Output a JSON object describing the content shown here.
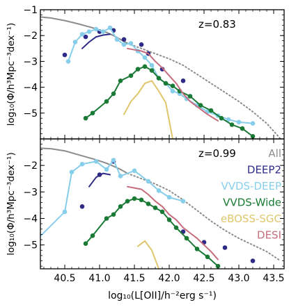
{
  "chart_data": [
    {
      "type": "line",
      "panel": "top",
      "annotation": "z=0.83",
      "xlabel": "log₁₀(L[OII]/h⁻²erg s⁻¹)",
      "ylabel": "log₁₀(Φ/h³Mpc⁻³dex⁻¹)",
      "xlim": [
        40.15,
        43.65
      ],
      "ylim": [
        -6.0,
        -1.0
      ],
      "yticks": [
        -1,
        -2,
        -3,
        -4,
        -5
      ],
      "ytick_labels": [
        "−1",
        "−2",
        "−3",
        "−4",
        "−5"
      ],
      "series": [
        {
          "name": "All",
          "style": "solid",
          "color": "#8c8c8c",
          "x": [
            40.15,
            40.3,
            40.5,
            40.7,
            40.9,
            41.0,
            41.1,
            41.2,
            41.3,
            41.4
          ],
          "y": [
            -1.28,
            -1.32,
            -1.42,
            -1.55,
            -1.7,
            -1.79,
            -1.88,
            -2.0,
            -2.15,
            -2.3
          ]
        },
        {
          "name": "",
          "style": "dotted",
          "color": "#8c8c8c",
          "x": [
            41.4,
            41.6,
            41.8,
            42.0,
            42.2,
            42.4,
            42.6,
            42.8,
            43.0,
            43.2,
            43.4,
            43.6
          ],
          "y": [
            -2.3,
            -2.5,
            -2.7,
            -2.9,
            -3.15,
            -3.5,
            -3.85,
            -4.2,
            -4.55,
            -4.95,
            -5.4,
            -6.0
          ]
        },
        {
          "name": "DEEP2",
          "style": "markers",
          "color": "#2e2a85",
          "x": [
            40.1,
            40.5,
            40.8,
            41.0,
            41.2,
            41.35,
            41.6,
            41.7,
            41.9,
            42.2
          ],
          "y": [
            -3.55,
            -2.75,
            -2.05,
            -1.85,
            -1.8,
            -2.15,
            -2.35,
            -2.7,
            -3.3,
            -3.75
          ]
        },
        {
          "name": "",
          "style": "solid",
          "color": "#2e2a85",
          "x": [
            40.75,
            40.85,
            40.95,
            41.05,
            41.15
          ],
          "y": [
            -2.5,
            -2.25,
            -2.05,
            -1.98,
            -1.95
          ]
        },
        {
          "name": "VVDS-DEEP",
          "style": "line+markers",
          "color": "#87ceeb",
          "x": [
            40.55,
            40.65,
            40.75,
            40.85,
            40.95,
            41.05,
            41.15,
            41.25,
            41.35,
            41.45,
            41.55,
            41.65,
            41.75,
            41.85,
            41.95,
            42.05,
            42.15,
            42.25,
            42.4,
            42.55,
            42.7,
            42.85,
            43.0,
            43.2
          ],
          "y": [
            -3.0,
            -2.25,
            -1.95,
            -1.85,
            -1.75,
            -1.85,
            -1.7,
            -2.15,
            -2.35,
            -2.3,
            -2.6,
            -2.85,
            -3.15,
            -3.65,
            -3.85,
            -4.15,
            -4.25,
            -4.45,
            -4.7,
            -4.95,
            -5.1,
            -5.25,
            -5.35,
            -5.4
          ]
        },
        {
          "name": "VVDS-Wide",
          "style": "line+markers",
          "color": "#1a7a35",
          "x": [
            40.8,
            40.9,
            41.1,
            41.2,
            41.3,
            41.45,
            41.55,
            41.65,
            41.75,
            41.85,
            41.95,
            42.05,
            42.15,
            42.3,
            42.45,
            42.6,
            42.75,
            42.9,
            43.05,
            43.2
          ],
          "y": [
            -5.2,
            -5.0,
            -4.55,
            -4.25,
            -3.75,
            -3.55,
            -3.3,
            -3.2,
            -3.35,
            -3.65,
            -3.85,
            -3.95,
            -4.15,
            -4.35,
            -4.7,
            -4.9,
            -5.2,
            -5.45,
            -5.6,
            -5.9
          ]
        },
        {
          "name": "eBOSS-SGC",
          "style": "solid",
          "color": "#e0c66b",
          "x": [
            41.35,
            41.45,
            41.55,
            41.65,
            41.75,
            41.85,
            41.95,
            42.05
          ],
          "y": [
            -5.05,
            -4.55,
            -4.25,
            -3.85,
            -3.75,
            -4.15,
            -4.6,
            -6.0
          ]
        },
        {
          "name": "DESI",
          "style": "solid",
          "color": "#c76c7d",
          "x": [
            41.4,
            41.5,
            41.6,
            41.7,
            41.8,
            41.9,
            42.0,
            42.1,
            42.2,
            42.3,
            42.4,
            42.55,
            42.7
          ],
          "y": [
            -2.5,
            -2.55,
            -2.6,
            -2.7,
            -3.0,
            -3.25,
            -3.55,
            -3.85,
            -4.25,
            -4.55,
            -4.75,
            -5.05,
            -5.3
          ]
        }
      ]
    },
    {
      "type": "line",
      "panel": "bottom",
      "annotation": "z=0.99",
      "xlabel": "log₁₀(L[OII]/h⁻²erg s⁻¹)",
      "ylabel": "log₁₀(Φ/h³Mpc⁻³dex⁻¹)",
      "xlim": [
        40.15,
        43.65
      ],
      "ylim": [
        -5.9,
        -1.0
      ],
      "yticks": [
        -2,
        -3,
        -4,
        -5
      ],
      "ytick_labels": [
        "−2",
        "−3",
        "−4",
        "−5"
      ],
      "xticks": [
        40.5,
        41.0,
        41.5,
        42.0,
        42.5,
        43.0,
        43.5
      ],
      "xtick_labels": [
        "40.5",
        "41.0",
        "41.5",
        "42.0",
        "42.5",
        "43.0",
        "43.5"
      ],
      "legend": [
        "All",
        "DEEP2",
        "VVDS-DEEP",
        "VVDS-Wide",
        "eBOSS-SGC",
        "DESI"
      ],
      "series": [
        {
          "name": "All",
          "style": "solid",
          "color": "#8c8c8c",
          "x": [
            40.15,
            40.3,
            40.5,
            40.7,
            40.9,
            41.0,
            41.1,
            41.2,
            41.3,
            41.4
          ],
          "y": [
            -1.35,
            -1.37,
            -1.45,
            -1.6,
            -1.75,
            -1.83,
            -1.92,
            -2.03,
            -2.15,
            -2.3
          ]
        },
        {
          "name": "",
          "style": "dotted",
          "color": "#8c8c8c",
          "x": [
            41.4,
            41.6,
            41.8,
            42.0,
            42.2,
            42.4,
            42.6,
            42.8,
            43.0,
            43.2,
            43.4,
            43.6
          ],
          "y": [
            -2.3,
            -2.5,
            -2.7,
            -2.95,
            -3.3,
            -3.7,
            -4.1,
            -4.45,
            -4.75,
            -5.0,
            -5.25,
            -5.6
          ]
        },
        {
          "name": "DEEP2",
          "style": "markers",
          "color": "#2e2a85",
          "x": [
            40.75,
            41.0,
            41.2,
            42.2,
            42.5,
            42.8,
            43.2
          ],
          "y": [
            -3.55,
            -2.35,
            -1.85,
            -4.5,
            -4.9,
            -5.1,
            -5.6
          ]
        },
        {
          "name": "",
          "style": "solid",
          "color": "#2e2a85",
          "x": [
            40.85,
            40.95,
            41.05,
            41.15
          ],
          "y": [
            -2.8,
            -2.45,
            -2.3,
            -2.35
          ]
        },
        {
          "name": "VVDS-DEEP",
          "style": "line+markers",
          "color": "#87ceeb",
          "x": [
            40.1,
            40.5,
            40.6,
            40.75,
            40.95,
            41.1,
            41.2,
            41.3,
            41.5,
            41.7,
            41.85,
            42.0,
            42.2
          ],
          "y": [
            -4.8,
            -3.75,
            -2.25,
            -1.95,
            -1.85,
            -2.15,
            -1.8,
            -2.4,
            -2.2,
            -2.6,
            -2.95,
            -3.2,
            -3.35
          ]
        },
        {
          "name": "VVDS-Wide",
          "style": "line+markers",
          "color": "#1a7a35",
          "x": [
            40.8,
            40.9,
            41.1,
            41.2,
            41.3,
            41.4,
            41.5,
            41.6,
            41.7,
            41.8,
            41.9,
            42.0,
            42.1,
            42.25,
            42.4,
            42.55,
            42.7
          ],
          "y": [
            -4.95,
            -4.65,
            -4.0,
            -3.85,
            -3.55,
            -3.35,
            -3.25,
            -3.3,
            -3.45,
            -3.6,
            -3.75,
            -4.05,
            -4.35,
            -4.75,
            -5.15,
            -5.45,
            -5.8
          ]
        },
        {
          "name": "eBOSS-SGC",
          "style": "solid",
          "color": "#e0c66b",
          "x": [
            41.55,
            41.65,
            41.75,
            41.85
          ],
          "y": [
            -5.05,
            -4.85,
            -5.2,
            -5.9
          ]
        },
        {
          "name": "DESI",
          "style": "solid",
          "color": "#c76c7d",
          "x": [
            41.4,
            41.5,
            41.6,
            41.7,
            41.8,
            41.9,
            42.0,
            42.1,
            42.2,
            42.3,
            42.4,
            42.5,
            42.6,
            42.7
          ],
          "y": [
            -2.8,
            -2.85,
            -2.9,
            -3.1,
            -3.35,
            -3.55,
            -3.85,
            -4.05,
            -4.35,
            -4.55,
            -4.75,
            -5.0,
            -5.25,
            -5.55
          ]
        }
      ]
    }
  ]
}
